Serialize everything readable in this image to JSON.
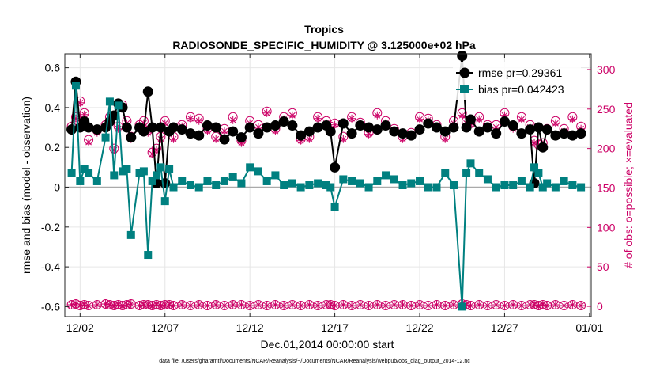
{
  "chart_data": {
    "type": "line",
    "title": "Tropics",
    "subtitle": "RADIOSONDE_SPECIFIC_HUMIDITY @ 3.125000e+02 hPa",
    "xlabel": "Dec.01,2014 00:00:00 start",
    "ylabel": "rmse and bias (model - observation)",
    "y2label": "# of obs: o=possible; ×=evaluated",
    "footnote": "data file: /Users/gharamti/Documents/NCAR/Reanalysis/~/Documents/NCAR/Reanalysis/webpub/obs_diag_output_2014-12.nc",
    "xlim": [
      0.6,
      31.6
    ],
    "ylim": [
      -0.65,
      0.67
    ],
    "y2lim": [
      -13,
      320
    ],
    "x_ticks": [
      1.5,
      6.5,
      11.5,
      16.5,
      21.5,
      26.5,
      31.5
    ],
    "x_tick_labels": [
      "12/02",
      "12/07",
      "12/12",
      "12/17",
      "12/22",
      "12/27",
      "01/01"
    ],
    "y_ticks": [
      0.6,
      0.4,
      0.2,
      0,
      -0.2,
      -0.4,
      -0.6
    ],
    "y_tick_labels": [
      "0.6",
      "0.4",
      "0.2",
      "0",
      "-0.2",
      "-0.4",
      "-0.6"
    ],
    "y2_ticks": [
      300,
      250,
      200,
      150,
      100,
      50,
      0
    ],
    "y2_tick_labels": [
      "300",
      "250",
      "200",
      "150",
      "100",
      "50",
      "0"
    ],
    "legend": [
      {
        "name": "rmse pr=0.29361",
        "color": "#000000"
      },
      {
        "name": "bias pr=0.042423",
        "color": "#008080"
      }
    ],
    "colors": {
      "rmse": "#000000",
      "bias": "#008080",
      "obs": "#CC0066",
      "zero_line": "#aaaaaa"
    },
    "series": [
      {
        "name": "rmse",
        "x": [
          1.0,
          1.25,
          1.5,
          1.75,
          2.0,
          2.5,
          3.0,
          3.25,
          3.5,
          3.75,
          4.0,
          4.25,
          4.5,
          5.0,
          5.25,
          5.5,
          5.75,
          6.0,
          6.25,
          6.5,
          6.75,
          7.0,
          7.5,
          8.0,
          8.5,
          9.0,
          9.5,
          10.0,
          10.5,
          11.0,
          11.5,
          12.0,
          12.5,
          13.0,
          13.5,
          14.0,
          14.5,
          15.0,
          15.5,
          16.0,
          16.25,
          16.5,
          17.0,
          17.5,
          18.0,
          18.5,
          19.0,
          19.5,
          20.0,
          20.5,
          21.0,
          21.5,
          22.0,
          22.5,
          23.0,
          23.5,
          24.0,
          24.25,
          24.5,
          25.0,
          25.5,
          26.0,
          26.5,
          27.0,
          27.5,
          28.0,
          28.25,
          28.5,
          28.75,
          29.0,
          29.5,
          30.0,
          30.5,
          31.0
        ],
        "values": [
          0.29,
          0.53,
          0.3,
          0.33,
          0.3,
          0.29,
          0.3,
          0.33,
          0.36,
          0.42,
          0.4,
          0.3,
          0.25,
          0.3,
          0.28,
          0.48,
          0.3,
          0.02,
          0.3,
          0.02,
          0.28,
          0.3,
          0.29,
          0.27,
          0.26,
          0.31,
          0.3,
          0.24,
          0.28,
          0.25,
          0.3,
          0.27,
          0.3,
          0.31,
          0.33,
          0.31,
          0.26,
          0.28,
          0.3,
          0.31,
          0.28,
          0.1,
          0.32,
          0.27,
          0.31,
          0.3,
          0.29,
          0.31,
          0.28,
          0.27,
          0.26,
          0.29,
          0.32,
          0.3,
          0.28,
          0.3,
          0.66,
          0.3,
          0.34,
          0.28,
          0.3,
          0.27,
          0.33,
          0.31,
          0.27,
          0.29,
          0.02,
          0.3,
          0.2,
          0.29,
          0.26,
          0.27,
          0.26,
          0.27
        ]
      },
      {
        "name": "bias",
        "x": [
          1.0,
          1.25,
          1.5,
          1.75,
          2.0,
          2.5,
          3.0,
          3.25,
          3.5,
          3.75,
          4.0,
          4.25,
          4.5,
          5.0,
          5.25,
          5.5,
          5.75,
          6.0,
          6.25,
          6.5,
          6.75,
          7.0,
          7.5,
          8.0,
          8.5,
          9.0,
          9.5,
          10.0,
          10.5,
          11.0,
          11.5,
          12.0,
          12.5,
          13.0,
          13.5,
          14.0,
          14.5,
          15.0,
          15.5,
          16.0,
          16.25,
          16.5,
          17.0,
          17.5,
          18.0,
          18.5,
          19.0,
          19.5,
          20.0,
          20.5,
          21.0,
          21.5,
          22.0,
          22.5,
          23.0,
          23.5,
          24.0,
          24.25,
          24.5,
          25.0,
          25.5,
          26.0,
          26.5,
          27.0,
          27.5,
          28.0,
          28.25,
          28.5,
          28.75,
          29.0,
          29.5,
          30.0,
          30.5,
          31.0
        ],
        "values": [
          0.07,
          0.51,
          0.03,
          0.09,
          0.07,
          0.03,
          0.25,
          0.43,
          0.06,
          0.41,
          0.08,
          0.09,
          -0.24,
          0.07,
          0.08,
          -0.34,
          0.03,
          0.06,
          0.1,
          -0.07,
          0.09,
          0.0,
          0.03,
          0.01,
          0.0,
          0.03,
          0.01,
          0.03,
          0.05,
          0.02,
          0.1,
          0.08,
          0.03,
          0.06,
          0.01,
          0.02,
          0.0,
          0.01,
          0.02,
          0.01,
          0.0,
          -0.1,
          0.04,
          0.03,
          0.02,
          0.0,
          0.03,
          0.06,
          0.04,
          0.01,
          0.02,
          0.03,
          0.0,
          0.0,
          0.07,
          0.01,
          -0.6,
          0.07,
          0.12,
          0.07,
          0.04,
          0.0,
          0.01,
          0.01,
          0.03,
          0.0,
          0.1,
          0.07,
          0.0,
          0.02,
          0.0,
          0.03,
          0.01,
          0.0
        ]
      }
    ],
    "obs_possible": {
      "x": [
        1.0,
        1.25,
        1.5,
        1.75,
        2.0,
        2.5,
        3.0,
        3.25,
        3.5,
        3.75,
        4.0,
        4.25,
        4.5,
        5.0,
        5.25,
        5.5,
        5.75,
        6.0,
        6.25,
        6.5,
        6.75,
        7.0,
        7.5,
        8.0,
        8.5,
        9.0,
        9.5,
        10.0,
        10.5,
        11.0,
        11.5,
        12.0,
        12.5,
        13.0,
        13.5,
        14.0,
        14.5,
        15.0,
        15.5,
        16.0,
        16.25,
        16.5,
        17.0,
        17.5,
        18.0,
        18.5,
        19.0,
        19.5,
        20.0,
        20.5,
        21.0,
        21.5,
        22.0,
        22.5,
        23.0,
        23.5,
        24.0,
        24.25,
        24.5,
        25.0,
        25.5,
        26.0,
        26.5,
        27.0,
        27.5,
        28.0,
        28.25,
        28.5,
        28.75,
        29.0,
        29.5,
        30.0,
        30.5,
        31.0
      ],
      "values": [
        228,
        240,
        260,
        245,
        211,
        223,
        230,
        240,
        200,
        228,
        255,
        235,
        215,
        230,
        235,
        223,
        195,
        200,
        215,
        235,
        222,
        215,
        230,
        240,
        238,
        225,
        215,
        225,
        240,
        210,
        235,
        230,
        247,
        225,
        240,
        245,
        212,
        215,
        240,
        235,
        228,
        232,
        215,
        240,
        233,
        220,
        245,
        235,
        225,
        215,
        220,
        240,
        238,
        230,
        215,
        235,
        245,
        235,
        232,
        240,
        230,
        230,
        245,
        228,
        240,
        230,
        210,
        205,
        207,
        225,
        235,
        225,
        240,
        228
      ]
    },
    "obs_evaluated": {
      "x": [
        1.0,
        1.25,
        1.5,
        1.75,
        2.0,
        2.5,
        3.0,
        3.25,
        3.5,
        3.75,
        4.0,
        4.25,
        4.5,
        5.0,
        5.25,
        5.5,
        5.75,
        6.0,
        6.25,
        6.5,
        6.75,
        7.0,
        7.5,
        8.0,
        8.5,
        9.0,
        9.5,
        10.0,
        10.5,
        11.0,
        11.5,
        12.0,
        12.5,
        13.0,
        13.5,
        14.0,
        14.5,
        15.0,
        15.5,
        16.0,
        16.25,
        16.5,
        17.0,
        17.5,
        18.0,
        18.5,
        19.0,
        19.5,
        20.0,
        20.5,
        21.0,
        21.5,
        22.0,
        22.5,
        23.0,
        23.5,
        24.0,
        24.25,
        24.5,
        25.0,
        25.5,
        26.0,
        26.5,
        27.0,
        27.5,
        28.0,
        28.25,
        28.5,
        28.75,
        29.0,
        29.5,
        30.0,
        30.5,
        31.0
      ],
      "values": [
        225,
        238,
        258,
        243,
        208,
        220,
        228,
        238,
        198,
        225,
        252,
        232,
        212,
        228,
        232,
        220,
        193,
        198,
        212,
        232,
        220,
        212,
        228,
        238,
        235,
        222,
        212,
        222,
        236,
        207,
        232,
        227,
        245,
        222,
        237,
        242,
        210,
        212,
        238,
        232,
        225,
        230,
        212,
        238,
        230,
        218,
        242,
        232,
        222,
        212,
        217,
        237,
        236,
        227,
        212,
        232,
        242,
        232,
        230,
        237,
        227,
        227,
        242,
        225,
        237,
        227,
        207,
        203,
        205,
        222,
        232,
        222,
        237,
        225
      ]
    },
    "obs_bottom": {
      "x": [
        1.0,
        1.25,
        1.5,
        1.75,
        2.0,
        2.5,
        3.0,
        3.25,
        3.5,
        3.75,
        4.0,
        4.25,
        4.5,
        5.0,
        5.25,
        5.5,
        5.75,
        6.0,
        6.25,
        6.5,
        6.75,
        7.0,
        7.5,
        8.0,
        8.5,
        9.0,
        9.5,
        10.0,
        10.5,
        11.0,
        11.5,
        12.0,
        12.5,
        13.0,
        13.5,
        14.0,
        14.5,
        15.0,
        15.5,
        16.0,
        16.25,
        16.5,
        17.0,
        17.5,
        18.0,
        18.5,
        19.0,
        19.5,
        20.0,
        20.5,
        21.0,
        21.5,
        22.0,
        22.5,
        23.0,
        23.5,
        24.0,
        24.25,
        24.5,
        25.0,
        25.5,
        26.0,
        26.5,
        27.0,
        27.5,
        28.0,
        28.25,
        28.5,
        28.75,
        29.0,
        29.5,
        30.0,
        30.5,
        31.0
      ],
      "values": [
        2,
        3,
        1,
        2,
        1,
        2,
        3,
        2,
        1,
        2,
        1,
        2,
        3,
        1,
        2,
        2,
        1,
        2,
        1,
        2,
        2,
        1,
        2,
        1,
        2,
        1,
        2,
        1,
        2,
        2,
        1,
        2,
        1,
        2,
        1,
        2,
        1,
        2,
        1,
        2,
        2,
        1,
        2,
        1,
        2,
        1,
        2,
        1,
        2,
        2,
        1,
        2,
        1,
        2,
        1,
        2,
        3,
        2,
        1,
        2,
        1,
        2,
        1,
        2,
        1,
        2,
        2,
        1,
        2,
        1,
        2,
        1,
        2,
        1
      ]
    }
  }
}
